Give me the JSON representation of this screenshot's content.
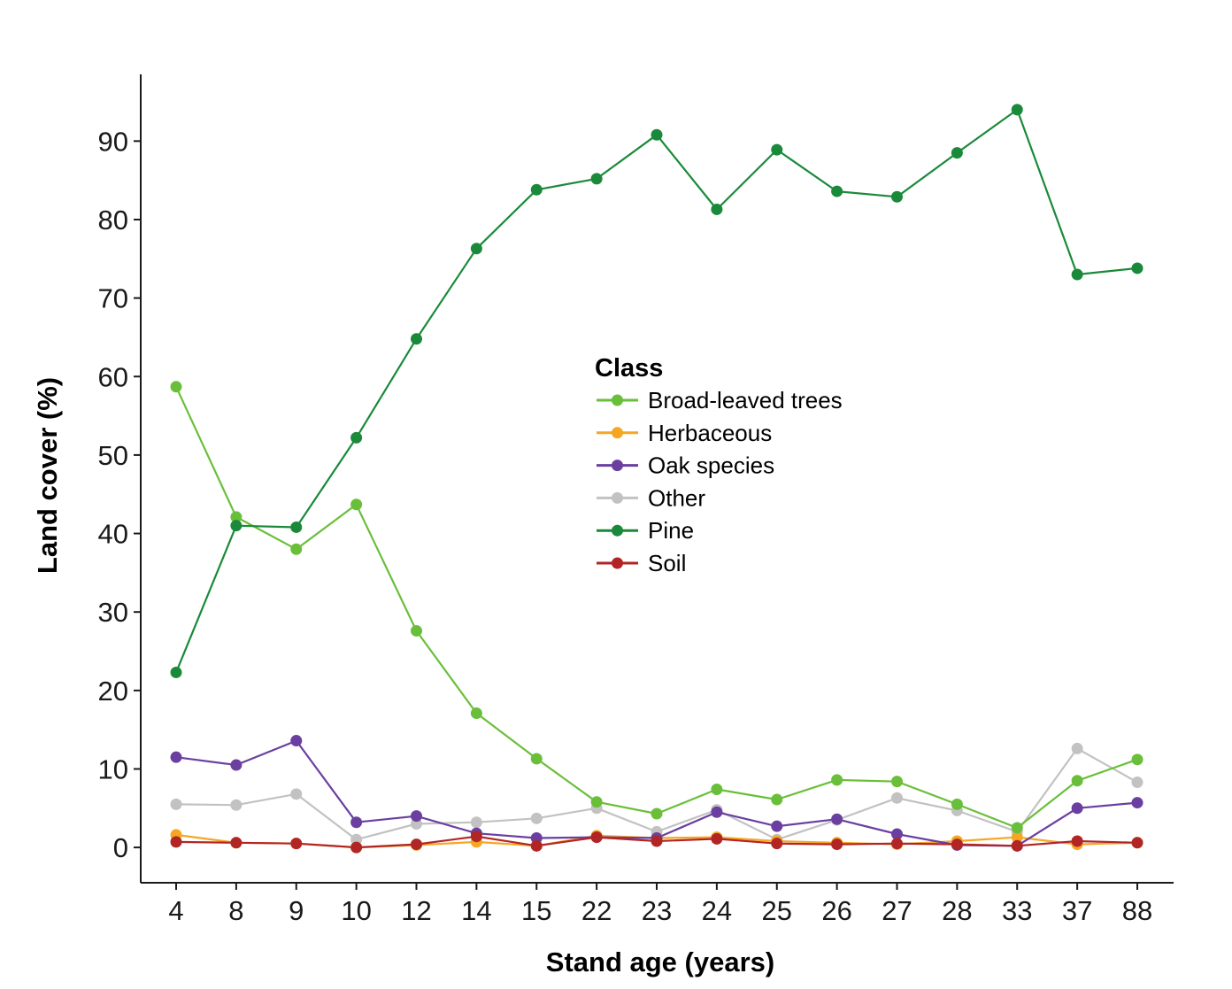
{
  "chart_data": {
    "type": "line",
    "xlabel": "Stand age (years)",
    "ylabel": "Land cover (%)",
    "categories": [
      "4",
      "8",
      "9",
      "10",
      "12",
      "14",
      "15",
      "22",
      "23",
      "24",
      "25",
      "26",
      "27",
      "28",
      "33",
      "37",
      "88"
    ],
    "yticks": [
      0,
      10,
      20,
      30,
      40,
      50,
      60,
      70,
      80,
      90
    ],
    "ylim": [
      -4.5,
      98.5
    ],
    "grid": false,
    "legend": {
      "title": "Class",
      "placement": "center"
    },
    "series": [
      {
        "name": "Other",
        "color": "#c2c2c2",
        "values": [
          5.5,
          5.4,
          6.8,
          1.0,
          3.0,
          3.2,
          3.7,
          5.0,
          2.0,
          4.8,
          1.0,
          3.5,
          6.3,
          4.7,
          2.0,
          12.6,
          8.3
        ]
      },
      {
        "name": "Herbaceous",
        "color": "#f5a623",
        "values": [
          1.6,
          0.6,
          0.5,
          0.0,
          0.3,
          0.7,
          0.2,
          1.5,
          1.2,
          1.3,
          0.8,
          0.6,
          0.4,
          0.8,
          1.3,
          0.4,
          0.6
        ]
      },
      {
        "name": "Oak species",
        "color": "#6a3fa0",
        "values": [
          11.5,
          10.5,
          13.6,
          3.2,
          4.0,
          1.8,
          1.2,
          1.3,
          1.2,
          4.5,
          2.7,
          3.6,
          1.7,
          0.3,
          0.2,
          5.0,
          5.7
        ]
      },
      {
        "name": "Soil",
        "color": "#b22525",
        "values": [
          0.7,
          0.6,
          0.5,
          0.0,
          0.4,
          1.4,
          0.2,
          1.3,
          0.8,
          1.1,
          0.5,
          0.4,
          0.5,
          0.4,
          0.2,
          0.8,
          0.6
        ]
      },
      {
        "name": "Broad-leaved trees",
        "color": "#6abf3a",
        "values": [
          58.7,
          42.1,
          38.0,
          43.7,
          27.6,
          17.1,
          11.3,
          5.8,
          4.3,
          7.4,
          6.1,
          8.6,
          8.4,
          5.5,
          2.5,
          8.5,
          11.2
        ]
      },
      {
        "name": "Pine",
        "color": "#1a8a3a",
        "values": [
          22.3,
          41.0,
          40.8,
          52.2,
          64.8,
          76.3,
          83.8,
          85.2,
          90.8,
          81.3,
          88.9,
          83.6,
          82.9,
          88.5,
          94.0,
          73.0,
          73.8
        ]
      }
    ]
  },
  "legend_order": [
    "Broad-leaved trees",
    "Herbaceous",
    "Oak species",
    "Other",
    "Pine",
    "Soil"
  ]
}
